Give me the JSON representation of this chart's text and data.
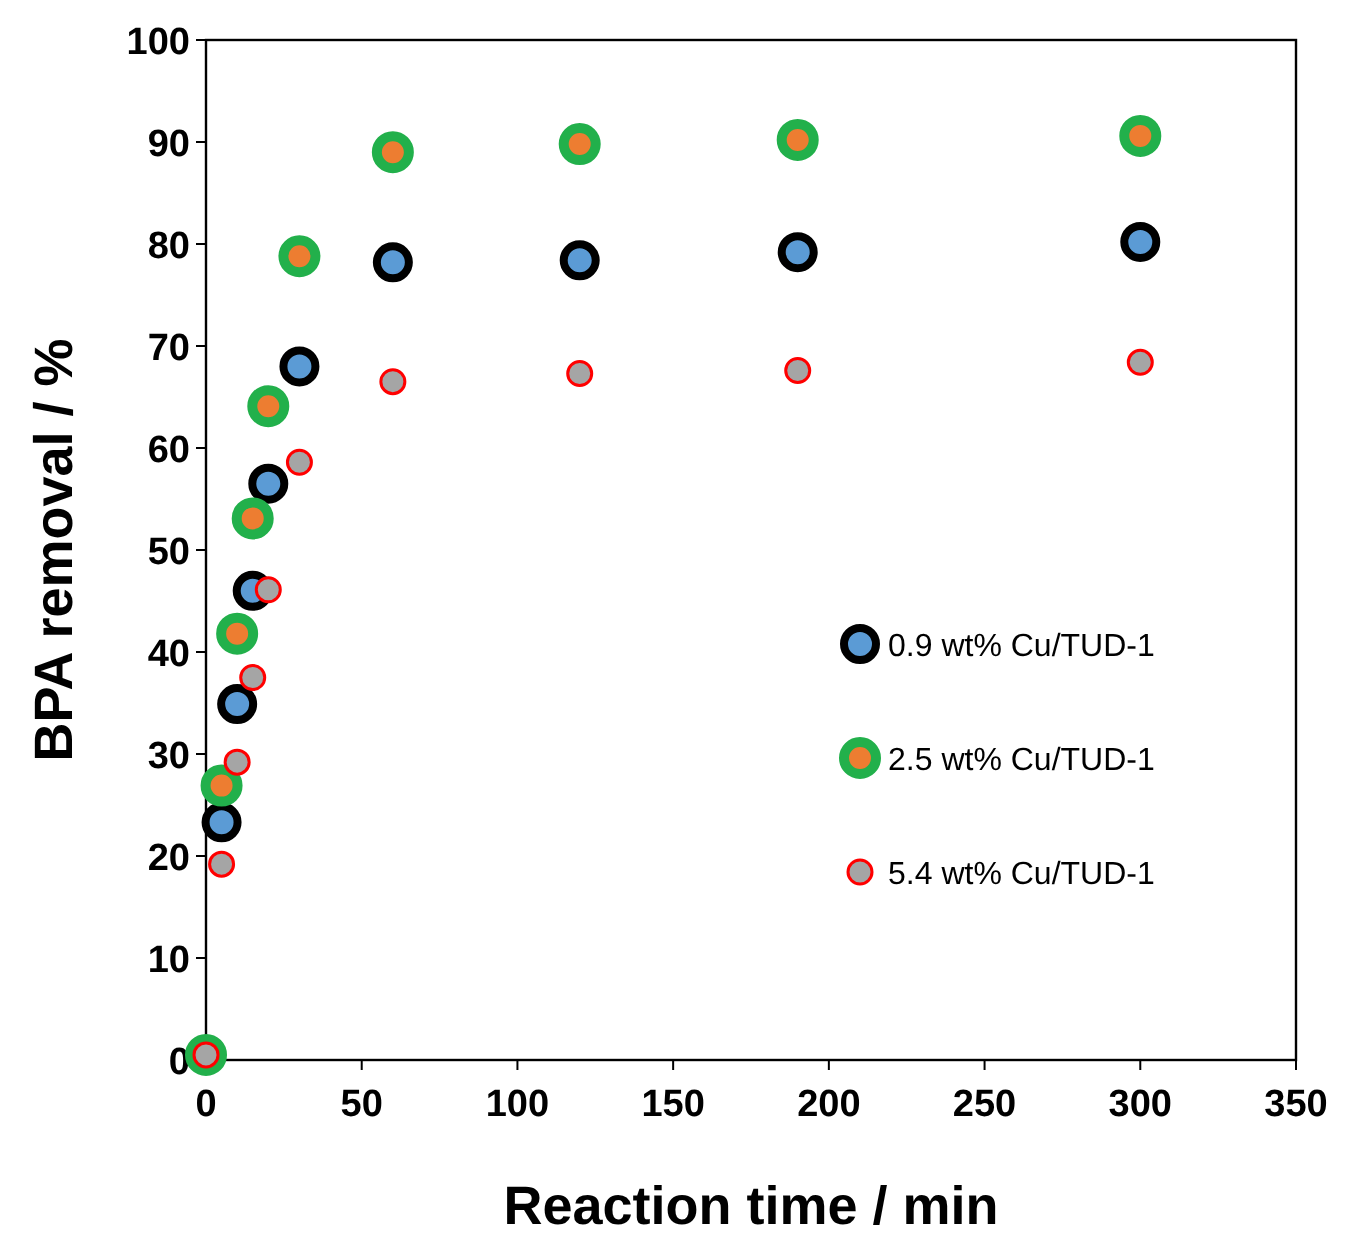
{
  "chart_data": {
    "type": "scatter",
    "xlabel": "Reaction time / min",
    "ylabel": "BPA removal / %",
    "x": [
      0,
      5,
      10,
      15,
      20,
      30,
      60,
      120,
      190,
      300
    ],
    "series": [
      {
        "name": "0.9 wt% Cu/TUD-1",
        "color": "#5b9bd5",
        "values": [
          null,
          23.3,
          34.9,
          46,
          56.5,
          68,
          78.2,
          78.4,
          79.2,
          80.2
        ]
      },
      {
        "name": "2.5 wt% Cu/TUD-1",
        "color": "#ed7d31",
        "values": [
          0.5,
          26.9,
          41.8,
          53.1,
          64.1,
          78.8,
          89,
          89.8,
          90.2,
          90.6
        ]
      },
      {
        "name": "5.4 wt% Cu/TUD-1",
        "color": "#a5a5a5",
        "values": [
          0.5,
          19.2,
          29.2,
          37.5,
          46.1,
          58.6,
          66.5,
          67.3,
          67.6,
          68.4
        ]
      }
    ],
    "xlim": [
      0,
      350
    ],
    "xticks": [
      0,
      50,
      100,
      150,
      200,
      250,
      300,
      350
    ],
    "ylim": [
      0,
      100
    ],
    "yticks": [
      0,
      10,
      20,
      30,
      40,
      50,
      60,
      70,
      80,
      90,
      100
    ],
    "grid": false,
    "legend": "right",
    "marker": "circle"
  }
}
